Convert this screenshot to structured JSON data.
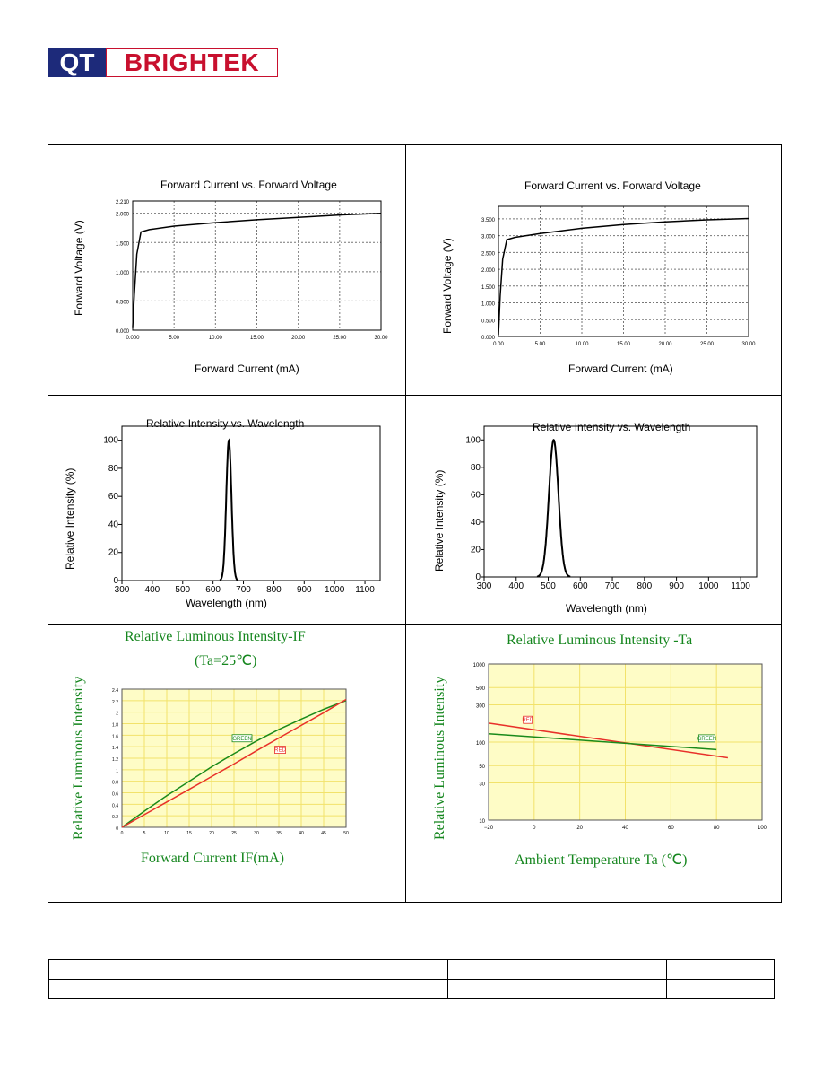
{
  "logo": {
    "left": "QT",
    "right": "BRIGHTEK"
  },
  "chart_data": [
    {
      "id": "vf-red",
      "type": "line",
      "title": "Forward Current vs. Forward Voltage",
      "xlabel": "Forward Current (mA)",
      "ylabel": "Forward Voltage (V)",
      "xlim": [
        0,
        30
      ],
      "ylim": [
        0,
        2.21
      ],
      "x_ticks": [
        "0.000",
        "5.00",
        "10.00",
        "15.00",
        "20.00",
        "25.00",
        "30.00"
      ],
      "y_ticks": [
        "0.000",
        "0.500",
        "1.000",
        "1.500",
        "2.000",
        "2.210"
      ],
      "series": [
        {
          "x": [
            0,
            0.2,
            0.5,
            1,
            2,
            5,
            10,
            15,
            20,
            25,
            30
          ],
          "y": [
            0.05,
            0.6,
            1.3,
            1.68,
            1.72,
            1.78,
            1.84,
            1.89,
            1.93,
            1.97,
            2.0
          ]
        }
      ]
    },
    {
      "id": "vf-green",
      "type": "line",
      "title": "Forward Current vs. Forward Voltage",
      "xlabel": "Forward Current (mA)",
      "ylabel": "Forward Voltage (V)",
      "xlim": [
        0,
        30
      ],
      "ylim": [
        0,
        3.87
      ],
      "x_ticks": [
        "0.00",
        "5.00",
        "10.00",
        "15.00",
        "20.00",
        "25.00",
        "30.00"
      ],
      "y_ticks": [
        "0.000",
        "0.500",
        "1.000",
        "1.500",
        "2.000",
        "2.500",
        "3.000",
        "3.500"
      ],
      "series": [
        {
          "x": [
            0,
            0.2,
            0.5,
            1,
            2,
            5,
            10,
            15,
            20,
            25,
            30
          ],
          "y": [
            0.05,
            1.2,
            2.3,
            2.88,
            2.95,
            3.06,
            3.22,
            3.33,
            3.41,
            3.47,
            3.51
          ]
        }
      ]
    },
    {
      "id": "spec-red",
      "type": "line",
      "title": "Relative Intensity vs. Wavelength",
      "xlabel": "Wavelength (nm)",
      "ylabel": "Relative Intensity (%)",
      "xlim": [
        300,
        1150
      ],
      "ylim": [
        0,
        110
      ],
      "x_ticks": [
        "300",
        "400",
        "500",
        "600",
        "700",
        "800",
        "900",
        "1000",
        "1100"
      ],
      "y_ticks": [
        "0",
        "20",
        "40",
        "60",
        "80",
        "100"
      ],
      "peak_nm": 652,
      "fwhm_nm": 20
    },
    {
      "id": "spec-green",
      "type": "line",
      "title": "Relative Intensity vs. Wavelength",
      "xlabel": "Wavelength (nm)",
      "ylabel": "Relative Intensity (%)",
      "xlim": [
        300,
        1150
      ],
      "ylim": [
        0,
        110
      ],
      "x_ticks": [
        "300",
        "400",
        "500",
        "600",
        "700",
        "800",
        "900",
        "1000",
        "1100"
      ],
      "y_ticks": [
        "0",
        "20",
        "40",
        "60",
        "80",
        "100"
      ],
      "peak_nm": 517,
      "fwhm_nm": 35
    },
    {
      "id": "lum-if",
      "type": "line",
      "title": "Relative Luminous Intensity-IF",
      "subtitle": "(Ta=25℃)",
      "xlabel": "Forward Current IF(mA)",
      "ylabel": "Relative Luminous Intensity",
      "xlim": [
        0,
        50
      ],
      "ylim": [
        0,
        2.4
      ],
      "x_ticks": [
        "0",
        "5",
        "10",
        "15",
        "20",
        "25",
        "30",
        "35",
        "40",
        "45",
        "50"
      ],
      "y_ticks": [
        "0",
        "0.2",
        "0.4",
        "0.6",
        "0.8",
        "1",
        "1.2",
        "1.4",
        "1.6",
        "1.8",
        "2",
        "2.2",
        "2.4"
      ],
      "series": [
        {
          "name": "GREEN",
          "color": "#1a8a1a",
          "x": [
            0,
            5,
            10,
            15,
            20,
            25,
            30,
            35,
            40,
            45,
            50
          ],
          "y": [
            0,
            0.28,
            0.55,
            0.8,
            1.05,
            1.28,
            1.5,
            1.7,
            1.88,
            2.05,
            2.2
          ]
        },
        {
          "name": "RED",
          "color": "#e8302a",
          "x": [
            0,
            5,
            10,
            15,
            20,
            25,
            30,
            35,
            40,
            45,
            50
          ],
          "y": [
            0,
            0.22,
            0.44,
            0.66,
            0.88,
            1.1,
            1.33,
            1.55,
            1.77,
            1.99,
            2.22
          ]
        }
      ]
    },
    {
      "id": "lum-ta",
      "type": "line",
      "title": "Relative Luminous Intensity -Ta",
      "xlabel": "Ambient Temperature Ta (℃)",
      "ylabel": "Relative Luminous Intensity",
      "xlim": [
        -20,
        100
      ],
      "ylim": [
        10,
        1000
      ],
      "yscale": "log",
      "x_ticks": [
        "−20",
        "0",
        "20",
        "40",
        "60",
        "80",
        "100"
      ],
      "y_ticks": [
        "10",
        "30",
        "50",
        "100",
        "300",
        "500",
        "1000"
      ],
      "series": [
        {
          "name": "RED",
          "color": "#e8302a",
          "x": [
            -20,
            85
          ],
          "y": [
            175,
            63
          ]
        },
        {
          "name": "GREEN",
          "color": "#1a8a1a",
          "x": [
            -20,
            80
          ],
          "y": [
            128,
            80
          ]
        }
      ]
    }
  ]
}
